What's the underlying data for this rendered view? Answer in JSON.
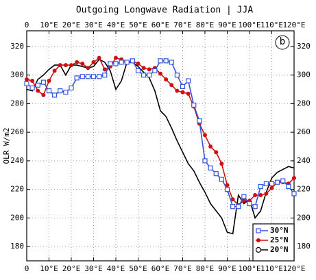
{
  "chart_data": {
    "type": "line",
    "title": "Outgoing Longwave Radiation | JJA",
    "ylabel": "OLR W/m2",
    "annotation": "b",
    "x": [
      0,
      2.5,
      5,
      7.5,
      10,
      12.5,
      15,
      17.5,
      20,
      22.5,
      25,
      27.5,
      30,
      32.5,
      35,
      37.5,
      40,
      42.5,
      45,
      47.5,
      50,
      52.5,
      55,
      57.5,
      60,
      62.5,
      65,
      67.5,
      70,
      72.5,
      75,
      77.5,
      80,
      82.5,
      85,
      87.5,
      90,
      92.5,
      95,
      97.5,
      100,
      102.5,
      105,
      107.5,
      110,
      112.5,
      115,
      117.5,
      120
    ],
    "series": [
      {
        "name": "30°N",
        "color": "#3355dd",
        "marker": "open-square",
        "values": [
          294,
          291,
          293,
          295,
          289,
          286,
          289,
          288,
          291,
          298,
          299,
          299,
          299,
          299,
          300,
          308,
          308,
          309,
          309,
          310,
          303,
          300,
          300,
          303,
          310,
          310,
          309,
          300,
          292,
          296,
          279,
          268,
          240,
          235,
          231,
          227,
          220,
          208,
          208,
          215,
          210,
          208,
          222,
          224,
          224,
          225,
          226,
          222,
          217
        ]
      },
      {
        "name": "25°N",
        "color": "#cc1111",
        "marker": "filled-circle",
        "values": [
          297,
          296,
          289,
          286,
          296,
          303,
          307,
          307,
          307,
          309,
          308,
          305,
          309,
          312,
          304,
          306,
          312,
          311,
          309,
          310,
          308,
          305,
          304,
          305,
          301,
          297,
          293,
          289,
          288,
          287,
          278,
          266,
          258,
          250,
          246,
          238,
          223,
          213,
          209,
          212,
          212,
          216,
          216,
          217,
          221,
          225,
          225,
          224,
          228
        ]
      },
      {
        "name": "20°N",
        "color": "#000000",
        "marker": "open-circle",
        "values": [
          290,
          289,
          297,
          300,
          304,
          307,
          307,
          300,
          307,
          307,
          306,
          305,
          306,
          311,
          309,
          303,
          290,
          296,
          309,
          309,
          306,
          302,
          298,
          289,
          275,
          271,
          263,
          254,
          246,
          238,
          233,
          225,
          218,
          210,
          205,
          200,
          190,
          189,
          216,
          210,
          213,
          200,
          205,
          218,
          228,
          232,
          234,
          236,
          235
        ]
      }
    ],
    "xlim": [
      0,
      120
    ],
    "xticks": [
      0,
      {
        "value": 10,
        "label": "10°E"
      },
      {
        "value": 20,
        "label": "20°E"
      },
      {
        "value": 30,
        "label": "30°E"
      },
      {
        "value": 40,
        "label": "40°E"
      },
      {
        "value": 50,
        "label": "50°E"
      },
      {
        "value": 60,
        "label": "60°E"
      },
      {
        "value": 70,
        "label": "70°E"
      },
      {
        "value": 80,
        "label": "80°E"
      },
      {
        "value": 90,
        "label": "90°E"
      },
      {
        "value": 100,
        "label": "100°E"
      },
      {
        "value": 110,
        "label": "110°E"
      },
      {
        "value": 120,
        "label": "120°E"
      }
    ],
    "ylim": [
      170,
      331
    ],
    "yticks": [
      180,
      200,
      220,
      240,
      260,
      280,
      300,
      320
    ],
    "grid": true,
    "legend": "lower right"
  }
}
